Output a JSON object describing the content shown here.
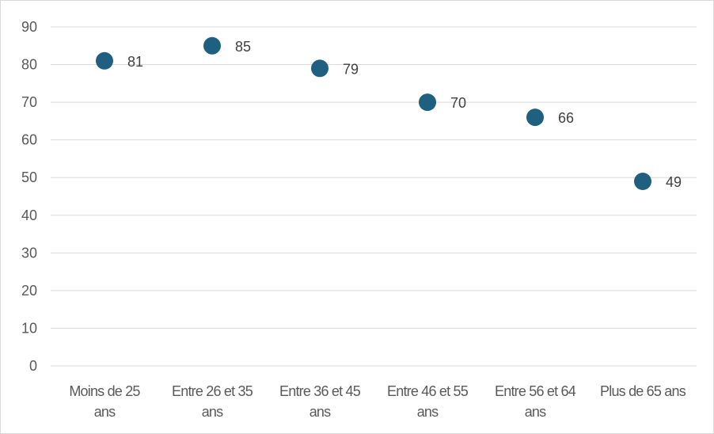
{
  "chart_data": {
    "type": "scatter",
    "categories": [
      [
        "Moins de 25",
        "ans"
      ],
      [
        "Entre 26 et 35",
        "ans"
      ],
      [
        "Entre 36 et 45",
        "ans"
      ],
      [
        "Entre 46 et 55",
        "ans"
      ],
      [
        "Entre 56 et 64",
        "ans"
      ],
      [
        "Plus de 65 ans"
      ]
    ],
    "values": [
      81,
      85,
      79,
      70,
      66,
      49
    ],
    "data_labels": [
      "81",
      "85",
      "79",
      "70",
      "66",
      "49"
    ],
    "ylim": [
      0,
      90
    ],
    "yticks": [
      "0",
      "10",
      "20",
      "30",
      "40",
      "50",
      "60",
      "70",
      "80",
      "90"
    ],
    "grid": true,
    "legend": "none",
    "marker_color": "#1F5F7F",
    "gridline_color": "#d9d9d9"
  }
}
